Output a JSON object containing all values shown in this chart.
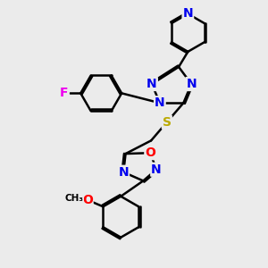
{
  "bg_color": "#ebebeb",
  "atom_colors": {
    "C": "#000000",
    "N": "#0000ee",
    "O": "#ff0000",
    "F": "#ee00ee",
    "S": "#bbaa00",
    "H": "#000000"
  },
  "bond_color": "#000000",
  "bond_width": 1.8,
  "font_size": 10
}
